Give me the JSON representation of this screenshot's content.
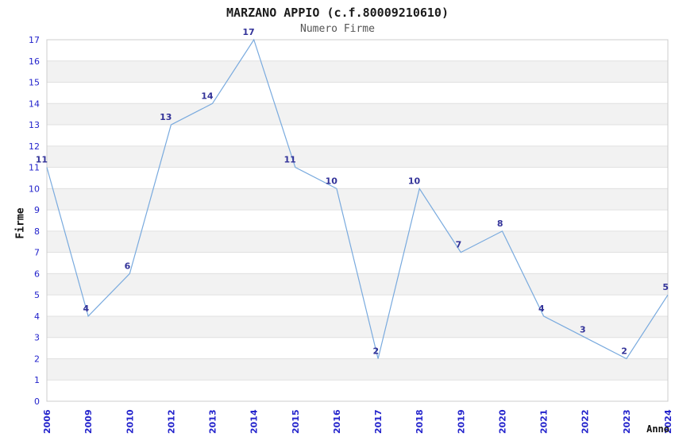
{
  "chart_data": {
    "type": "line",
    "title": "MARZANO APPIO (c.f.80009210610)",
    "subtitle": "Numero Firme",
    "xlabel": "Anno",
    "ylabel": "Firme",
    "categories": [
      "2006",
      "2009",
      "2010",
      "2012",
      "2013",
      "2014",
      "2015",
      "2016",
      "2017",
      "2018",
      "2019",
      "2020",
      "2021",
      "2022",
      "2023",
      "2024"
    ],
    "values": [
      11,
      4,
      6,
      13,
      14,
      17,
      11,
      10,
      2,
      10,
      7,
      8,
      4,
      3,
      2,
      5
    ],
    "ylim": [
      0,
      17
    ],
    "ytick_step": 1,
    "grid": true,
    "band_fill": "alternating-horizontal",
    "legend": "none",
    "colors": {
      "line": "#79aade",
      "data_label": "#333399",
      "tick_label": "#2323cc",
      "band": "#f2f2f2",
      "gridline": "#e0e0e0",
      "border": "#cccccc",
      "title": "#1a1a1a",
      "subtitle": "#555555",
      "axis_label": "#111111",
      "background": "#ffffff"
    }
  }
}
